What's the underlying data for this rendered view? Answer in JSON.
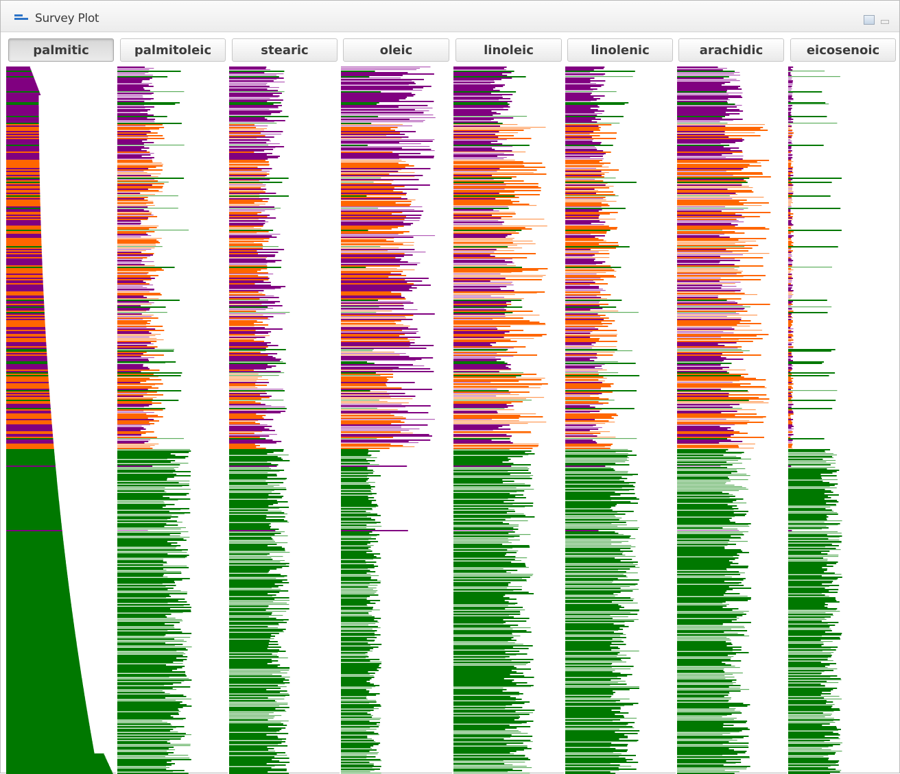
{
  "window": {
    "title": "Survey Plot",
    "icons": [
      "plot-icon",
      "restore-icon",
      "minimize-icon"
    ]
  },
  "attributes": [
    {
      "label": "palmitic",
      "selected": true
    },
    {
      "label": "palmitoleic",
      "selected": false
    },
    {
      "label": "stearic",
      "selected": false
    },
    {
      "label": "oleic",
      "selected": false
    },
    {
      "label": "linoleic",
      "selected": false
    },
    {
      "label": "linolenic",
      "selected": false
    },
    {
      "label": "arachidic",
      "selected": false
    },
    {
      "label": "eicosenoic",
      "selected": false
    }
  ],
  "class_colors": {
    "purple": "#800080",
    "orange": "#ff6600",
    "green": "#007800",
    "green_light": "#5eae5e",
    "purple_light": "#b35cb8",
    "orange_light": "#ff9a55"
  }
}
